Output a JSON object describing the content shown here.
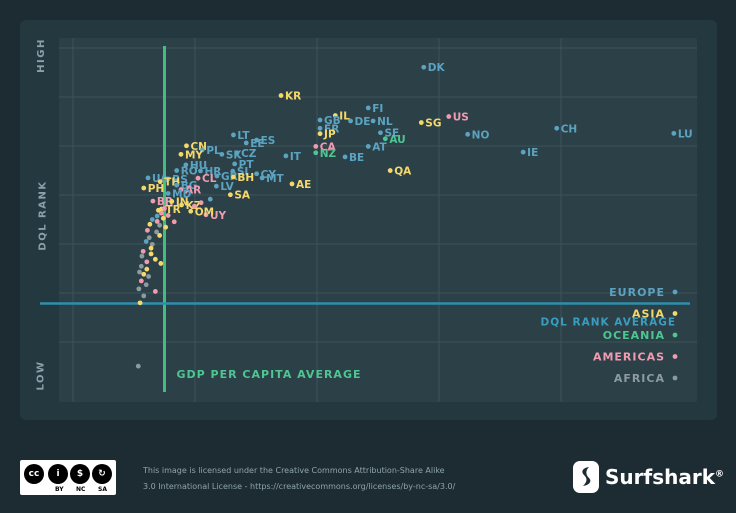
{
  "chart_data": {
    "type": "scatter",
    "ylabel": "DQL RANK",
    "ylabel_high": "HIGH",
    "ylabel_low": "LOW",
    "x_reference_label": "GDP PER CAPITA AVERAGE",
    "y_reference_label": "DQL RANK AVERAGE",
    "x_reference_value": 15,
    "y_reference_value": 25,
    "xlim": [
      0,
      100
    ],
    "ylim": [
      0,
      100
    ],
    "grid": true,
    "legend_position": "bottom-right",
    "regions": [
      {
        "name": "EUROPE",
        "color": "#5ba3c0"
      },
      {
        "name": "ASIA",
        "color": "#f5d86b"
      },
      {
        "name": "OCEANIA",
        "color": "#4fc591"
      },
      {
        "name": "AMERICAS",
        "color": "#f19bb0"
      },
      {
        "name": "AFRICA",
        "color": "#8d9aa0"
      }
    ],
    "points": [
      {
        "label": "DK",
        "region": "EUROPE",
        "x": 57.5,
        "y": 99.3
      },
      {
        "label": "KR",
        "region": "ASIA",
        "x": 34.1,
        "y": 90.4
      },
      {
        "label": "FI",
        "region": "EUROPE",
        "x": 48.4,
        "y": 86.5
      },
      {
        "label": "IL",
        "region": "ASIA",
        "x": 43.0,
        "y": 84.1
      },
      {
        "label": "US",
        "region": "AMERICAS",
        "x": 61.6,
        "y": 83.8
      },
      {
        "label": "GB",
        "region": "EUROPE",
        "x": 40.5,
        "y": 82.7
      },
      {
        "label": "DE",
        "region": "EUROPE",
        "x": 45.5,
        "y": 82.4
      },
      {
        "label": "NL",
        "region": "EUROPE",
        "x": 49.2,
        "y": 82.4
      },
      {
        "label": "SG",
        "region": "ASIA",
        "x": 57.1,
        "y": 81.9
      },
      {
        "label": "FR",
        "region": "EUROPE",
        "x": 40.5,
        "y": 80.1
      },
      {
        "label": "CH",
        "region": "EUROPE",
        "x": 79.3,
        "y": 80.1
      },
      {
        "label": "LU",
        "region": "EUROPE",
        "x": 98.5,
        "y": 78.5
      },
      {
        "label": "JP",
        "region": "ASIA",
        "x": 40.5,
        "y": 78.4
      },
      {
        "label": "SE",
        "region": "EUROPE",
        "x": 50.4,
        "y": 78.7
      },
      {
        "label": "NO",
        "region": "EUROPE",
        "x": 64.7,
        "y": 78.2
      },
      {
        "label": "LT",
        "region": "EUROPE",
        "x": 26.3,
        "y": 78.0
      },
      {
        "label": "AU",
        "region": "OCEANIA",
        "x": 51.2,
        "y": 76.8
      },
      {
        "label": "ES",
        "region": "EUROPE",
        "x": 30.1,
        "y": 76.4
      },
      {
        "label": "EE",
        "region": "EUROPE",
        "x": 28.4,
        "y": 75.5
      },
      {
        "label": "CN",
        "region": "ASIA",
        "x": 18.6,
        "y": 74.6
      },
      {
        "label": "AT",
        "region": "EUROPE",
        "x": 48.4,
        "y": 74.4
      },
      {
        "label": "CA",
        "region": "AMERICAS",
        "x": 39.8,
        "y": 74.4
      },
      {
        "label": "PL",
        "region": "EUROPE",
        "x": 21.2,
        "y": 73.3
      },
      {
        "label": "IE",
        "region": "EUROPE",
        "x": 73.8,
        "y": 72.6
      },
      {
        "label": "CZ",
        "region": "EUROPE",
        "x": 26.9,
        "y": 72.4
      },
      {
        "label": "NZ",
        "region": "OCEANIA",
        "x": 39.8,
        "y": 72.4
      },
      {
        "label": "SK",
        "region": "EUROPE",
        "x": 24.4,
        "y": 71.9
      },
      {
        "label": "MY",
        "region": "ASIA",
        "x": 17.7,
        "y": 71.9
      },
      {
        "label": "IT",
        "region": "EUROPE",
        "x": 34.9,
        "y": 71.4
      },
      {
        "label": "BE",
        "region": "EUROPE",
        "x": 44.6,
        "y": 71.1
      },
      {
        "label": "PT",
        "region": "EUROPE",
        "x": 26.5,
        "y": 68.9
      },
      {
        "label": "HU",
        "region": "EUROPE",
        "x": 18.5,
        "y": 68.6
      },
      {
        "label": "QA",
        "region": "ASIA",
        "x": 52.0,
        "y": 66.8
      },
      {
        "label": "RO",
        "region": "EUROPE",
        "x": 17.0,
        "y": 66.8
      },
      {
        "label": "HR",
        "region": "EUROPE",
        "x": 20.9,
        "y": 66.7
      },
      {
        "label": "SI",
        "region": "EUROPE",
        "x": 26.2,
        "y": 66.6
      },
      {
        "label": "GR",
        "region": "EUROPE",
        "x": 23.6,
        "y": 65.1
      },
      {
        "label": "CY",
        "region": "EUROPE",
        "x": 30.1,
        "y": 65.8
      },
      {
        "label": "BH",
        "region": "ASIA",
        "x": 26.3,
        "y": 64.8
      },
      {
        "label": "MT",
        "region": "EUROPE",
        "x": 31.0,
        "y": 64.5
      },
      {
        "label": "UA",
        "region": "EUROPE",
        "x": 12.3,
        "y": 64.5
      },
      {
        "label": "CL",
        "region": "AMERICAS",
        "x": 20.5,
        "y": 64.4
      },
      {
        "label": "RS",
        "region": "EUROPE",
        "x": 15.6,
        "y": 64.2
      },
      {
        "label": "TH",
        "region": "ASIA",
        "x": 14.3,
        "y": 63.3
      },
      {
        "label": "AE",
        "region": "ASIA",
        "x": 35.9,
        "y": 62.6
      },
      {
        "label": "BG",
        "region": "EUROPE",
        "x": 17.0,
        "y": 62.2
      },
      {
        "label": "LV",
        "region": "EUROPE",
        "x": 23.5,
        "y": 61.9
      },
      {
        "label": "PH",
        "region": "ASIA",
        "x": 11.6,
        "y": 61.3
      },
      {
        "label": "AR",
        "region": "AMERICAS",
        "x": 17.7,
        "y": 60.8
      },
      {
        "label": "MD",
        "region": "EUROPE",
        "x": 15.6,
        "y": 59.6
      },
      {
        "label": "SA",
        "region": "ASIA",
        "x": 25.8,
        "y": 59.2
      },
      {
        "label": "BR",
        "region": "AMERICAS",
        "x": 13.1,
        "y": 57.2
      },
      {
        "label": "IN",
        "region": "ASIA",
        "x": 16.2,
        "y": 57.1
      },
      {
        "label": "KZ",
        "region": "ASIA",
        "x": 17.8,
        "y": 56.0
      },
      {
        "label": "TR",
        "region": "ASIA",
        "x": 14.5,
        "y": 54.7
      },
      {
        "label": "UY",
        "region": "AMERICAS",
        "x": 21.8,
        "y": 52.9
      },
      {
        "label": "OM",
        "region": "ASIA",
        "x": 19.3,
        "y": 54.0
      },
      {
        "label": "",
        "region": "EUROPE",
        "x": 22.5,
        "y": 57.8
      },
      {
        "label": "",
        "region": "AMERICAS",
        "x": 21.0,
        "y": 56.7
      },
      {
        "label": "",
        "region": "AMERICAS",
        "x": 19.9,
        "y": 55.6
      },
      {
        "label": "",
        "region": "AMERICAS",
        "x": 15.0,
        "y": 54.9
      },
      {
        "label": "",
        "region": "ASIA",
        "x": 14.0,
        "y": 54.3
      },
      {
        "label": "",
        "region": "AMERICAS",
        "x": 14.5,
        "y": 53.4
      },
      {
        "label": "",
        "region": "EUROPE",
        "x": 13.8,
        "y": 52.5
      },
      {
        "label": "",
        "region": "AMERICAS",
        "x": 15.6,
        "y": 52.7
      },
      {
        "label": "",
        "region": "ASIA",
        "x": 14.8,
        "y": 51.8
      },
      {
        "label": "",
        "region": "EUROPE",
        "x": 13.0,
        "y": 51.4
      },
      {
        "label": "",
        "region": "AMERICAS",
        "x": 13.8,
        "y": 50.8
      },
      {
        "label": "",
        "region": "AMERICAS",
        "x": 16.6,
        "y": 50.7
      },
      {
        "label": "",
        "region": "ASIA",
        "x": 12.6,
        "y": 49.9
      },
      {
        "label": "",
        "region": "AFRICA",
        "x": 14.2,
        "y": 49.6
      },
      {
        "label": "",
        "region": "ASIA",
        "x": 15.2,
        "y": 49.0
      },
      {
        "label": "",
        "region": "AMERICAS",
        "x": 12.2,
        "y": 48.0
      },
      {
        "label": "",
        "region": "AFRICA",
        "x": 13.7,
        "y": 47.5
      },
      {
        "label": "",
        "region": "ASIA",
        "x": 14.2,
        "y": 46.4
      },
      {
        "label": "",
        "region": "AFRICA",
        "x": 12.5,
        "y": 45.7
      },
      {
        "label": "",
        "region": "EUROPE",
        "x": 12.0,
        "y": 44.5
      },
      {
        "label": "",
        "region": "AFRICA",
        "x": 13.0,
        "y": 43.6
      },
      {
        "label": "",
        "region": "ASIA",
        "x": 12.8,
        "y": 42.4
      },
      {
        "label": "",
        "region": "AMERICAS",
        "x": 11.5,
        "y": 41.4
      },
      {
        "label": "",
        "region": "ASIA",
        "x": 12.8,
        "y": 40.6
      },
      {
        "label": "",
        "region": "AFRICA",
        "x": 11.3,
        "y": 39.9
      },
      {
        "label": "",
        "region": "ASIA",
        "x": 13.5,
        "y": 38.9
      },
      {
        "label": "",
        "region": "AMERICAS",
        "x": 12.1,
        "y": 38.1
      },
      {
        "label": "",
        "region": "ASIA",
        "x": 14.4,
        "y": 37.6
      },
      {
        "label": "",
        "region": "AFRICA",
        "x": 11.2,
        "y": 36.7
      },
      {
        "label": "",
        "region": "ASIA",
        "x": 12.1,
        "y": 35.8
      },
      {
        "label": "",
        "region": "AFRICA",
        "x": 10.9,
        "y": 34.9
      },
      {
        "label": "",
        "region": "ASIA",
        "x": 11.6,
        "y": 34.2
      },
      {
        "label": "",
        "region": "AFRICA",
        "x": 12.4,
        "y": 33.5
      },
      {
        "label": "",
        "region": "AMERICAS",
        "x": 11.2,
        "y": 32.1
      },
      {
        "label": "",
        "region": "AFRICA",
        "x": 12.0,
        "y": 30.9
      },
      {
        "label": "",
        "region": "AFRICA",
        "x": 10.8,
        "y": 29.6
      },
      {
        "label": "",
        "region": "AMERICAS",
        "x": 13.5,
        "y": 28.8
      },
      {
        "label": "",
        "region": "AFRICA",
        "x": 11.6,
        "y": 27.4
      },
      {
        "label": "",
        "region": "ASIA",
        "x": 11.0,
        "y": 25.2
      },
      {
        "label": "",
        "region": "AFRICA",
        "x": 10.7,
        "y": 5.3
      }
    ]
  },
  "footer": {
    "license_line1": "This image is licensed under the Creative Commons Attribution-Share Alike",
    "license_line2": "3.0 International License - https://creativecommons.org/licenses/by-nc-sa/3.0/",
    "cc_labels": [
      "BY",
      "NC",
      "SA"
    ],
    "brand": "Surfshark",
    "brand_mark": "®"
  }
}
